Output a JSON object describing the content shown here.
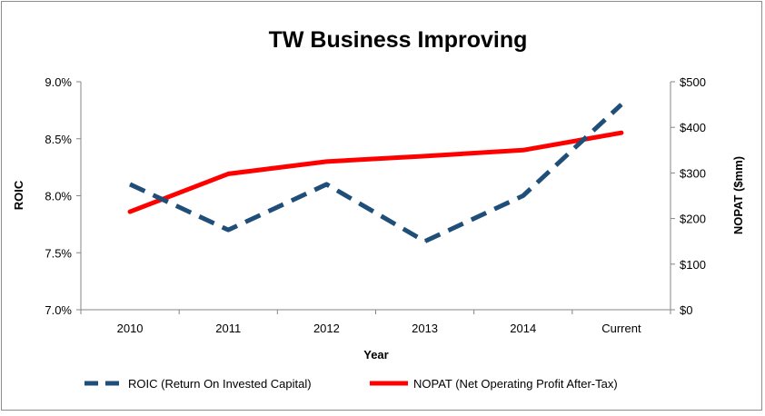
{
  "chart_data": {
    "type": "line",
    "title": "TW Business Improving",
    "xlabel": "Year",
    "ylabel": "ROIC",
    "y2label": "NOPAT ($mm)",
    "categories": [
      "2010",
      "2011",
      "2012",
      "2013",
      "2014",
      "Current"
    ],
    "ylim": [
      0.07,
      0.09
    ],
    "y_ticks": [
      "7.0%",
      "7.5%",
      "8.0%",
      "8.5%",
      "9.0%"
    ],
    "y2lim": [
      0,
      500
    ],
    "y2_ticks": [
      "$0",
      "$100",
      "$200",
      "$300",
      "$400",
      "$500"
    ],
    "grid": false,
    "legend_position": "bottom",
    "series": [
      {
        "name": "ROIC (Return On Invested Capital)",
        "axis": "left",
        "style": "dashed",
        "color": "#1f4e79",
        "values": [
          0.081,
          0.077,
          0.081,
          0.076,
          0.08,
          0.088
        ]
      },
      {
        "name": "NOPAT (Net Operating Profit After-Tax)",
        "axis": "right",
        "style": "solid",
        "color": "#ff0000",
        "values": [
          215,
          298,
          325,
          337,
          350,
          388
        ]
      }
    ]
  }
}
